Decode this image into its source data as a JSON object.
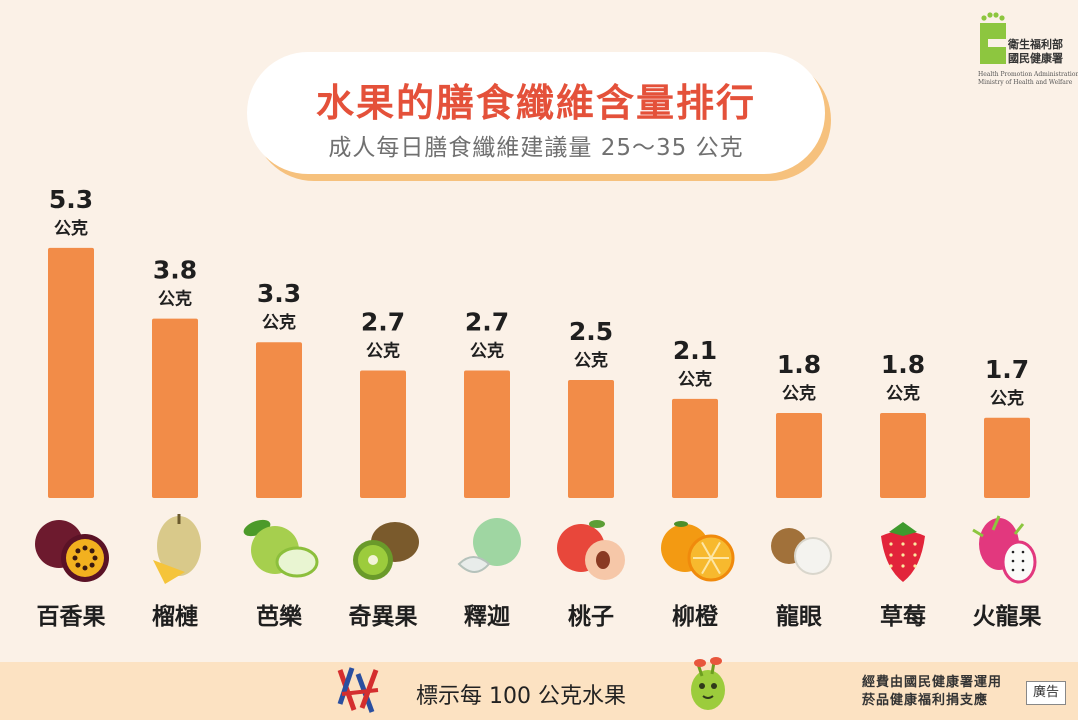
{
  "header": {
    "title": "水果的膳食纖維含量排行",
    "subtitle": "成人每日膳食纖維建議量 25～35 公克"
  },
  "logo": {
    "line1": "衛生福利部",
    "line2": "國民健康署",
    "en1": "Health Promotion Administration,",
    "en2": "Ministry of Health and Welfare"
  },
  "chart_data": {
    "type": "bar",
    "title": "水果的膳食纖維含量排行",
    "subtitle": "成人每日膳食纖維建議量 25～35 公克",
    "categories": [
      "百香果",
      "榴槤",
      "芭樂",
      "奇異果",
      "釋迦",
      "桃子",
      "柳橙",
      "龍眼",
      "草莓",
      "火龍果"
    ],
    "values": [
      5.3,
      3.8,
      3.3,
      2.7,
      2.7,
      2.5,
      2.1,
      1.8,
      1.8,
      1.7
    ],
    "value_labels": [
      "5.3",
      "3.8",
      "3.3",
      "2.7",
      "2.7",
      "2.5",
      "2.1",
      "1.8",
      "1.8",
      "1.7"
    ],
    "unit": "公克",
    "grid": false,
    "legend": "none",
    "bar_color": "#f28c48",
    "icons": [
      "passion-fruit-icon",
      "durian-icon",
      "guava-icon",
      "kiwi-icon",
      "sugar-apple-icon",
      "peach-icon",
      "orange-icon",
      "longan-icon",
      "strawberry-icon",
      "dragon-fruit-icon"
    ]
  },
  "footer": {
    "note": "標示每 100 公克水果",
    "sponsor_line1": "經費由國民健康署運用",
    "sponsor_line2": "菸品健康福利捐支應",
    "ad_label": "廣告"
  },
  "colors": {
    "background": "#fbf1e7",
    "title": "#e4513a",
    "bar": "#f28c48",
    "footer": "#fce2c2",
    "logo_green": "#8dc63f"
  }
}
